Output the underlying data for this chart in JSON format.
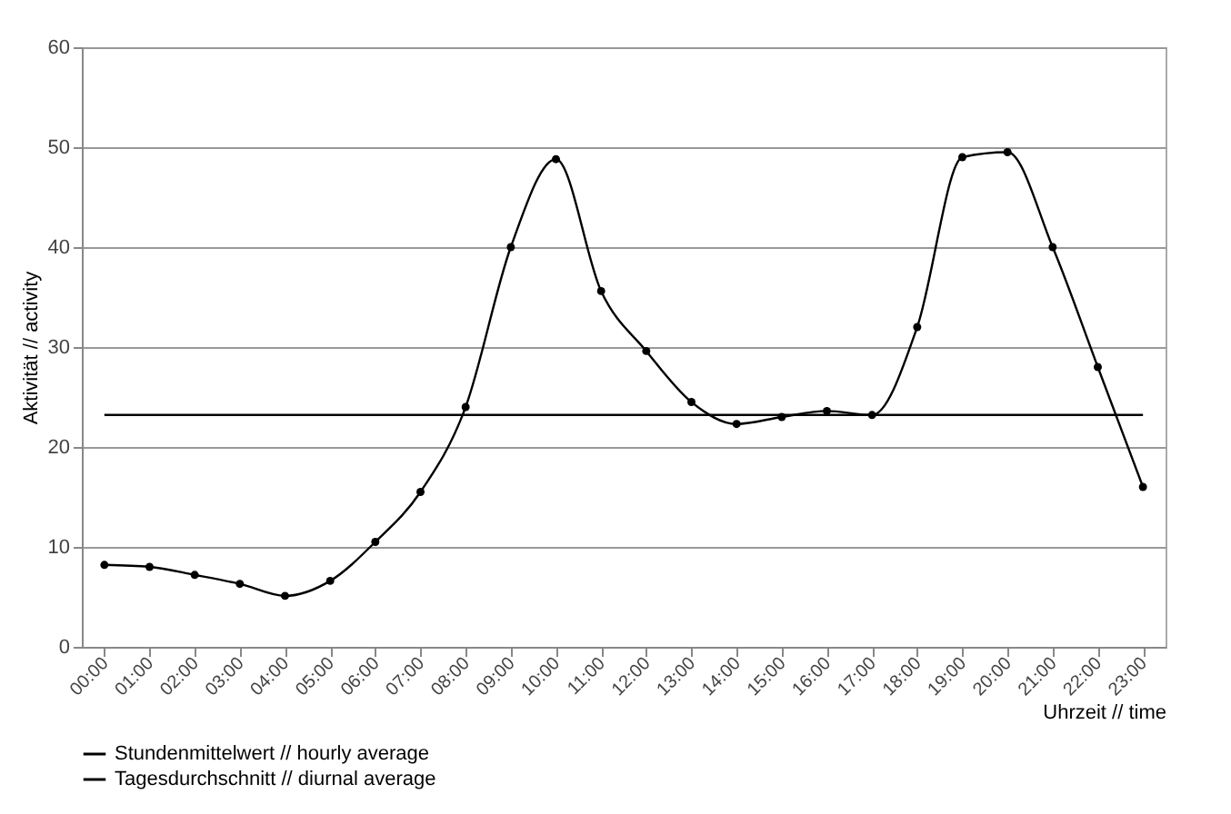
{
  "chart_data": {
    "type": "line",
    "xlabel": "Uhrzeit // time",
    "ylabel": "Aktivität // activity",
    "categories": [
      "00:00",
      "01:00",
      "02:00",
      "03:00",
      "04:00",
      "05:00",
      "06:00",
      "07:00",
      "08:00",
      "09:00",
      "10:00",
      "11:00",
      "12:00",
      "13:00",
      "14:00",
      "15:00",
      "16:00",
      "17:00",
      "18:00",
      "19:00",
      "20:00",
      "21:00",
      "22:00",
      "23:00"
    ],
    "series": [
      {
        "name": "Stundenmittelwert // hourly average",
        "color": "#000000",
        "marker": "circle",
        "values": [
          8.2,
          8,
          7.2,
          6.3,
          5.1,
          6.6,
          10.5,
          15.5,
          24,
          40,
          48.8,
          35.6,
          29.6,
          24.5,
          22.3,
          23,
          23.6,
          23.2,
          32,
          49,
          49.5,
          40,
          28,
          16
        ]
      },
      {
        "name": "Tagesdurchschnitt // diurnal average",
        "color": "#000000",
        "marker": "none",
        "values": [
          23.2,
          23.2,
          23.2,
          23.2,
          23.2,
          23.2,
          23.2,
          23.2,
          23.2,
          23.2,
          23.2,
          23.2,
          23.2,
          23.2,
          23.2,
          23.2,
          23.2,
          23.2,
          23.2,
          23.2,
          23.2,
          23.2,
          23.2,
          23.2
        ]
      }
    ],
    "ylim": [
      0,
      60
    ],
    "yticks": [
      0,
      10,
      20,
      30,
      40,
      50,
      60
    ],
    "grid": "y",
    "legend": "bottom",
    "line_style": "solid"
  }
}
